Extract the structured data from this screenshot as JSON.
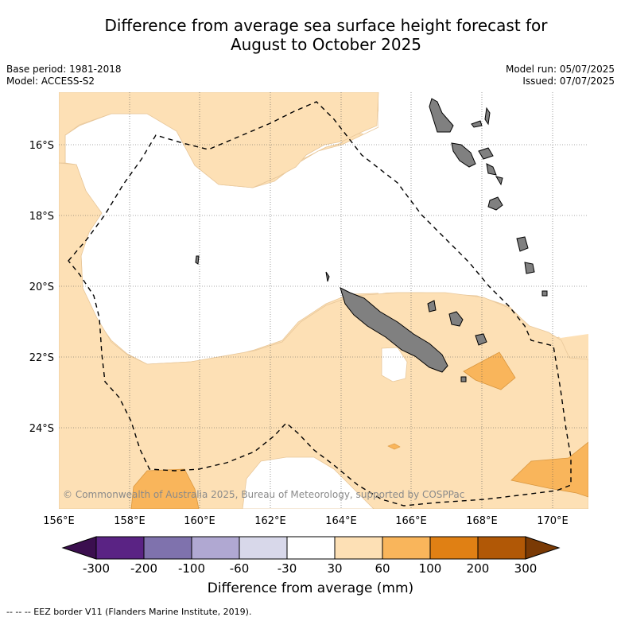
{
  "title_line1": "Difference from average sea surface height forecast for",
  "title_line2": "August to October 2025",
  "meta_left": {
    "base_period": "Base period: 1981-2018",
    "model": "Model: ACCESS-S2"
  },
  "meta_right": {
    "model_run": "Model run: 05/07/2025",
    "issued": "Issued: 07/07/2025"
  },
  "map": {
    "lon_range": [
      156,
      171
    ],
    "lat_range": [
      -26.2,
      -14.4
    ],
    "lat_ticks": [
      "16°S",
      "18°S",
      "20°S",
      "22°S",
      "24°S"
    ],
    "lon_ticks": [
      "156°E",
      "158°E",
      "160°E",
      "162°E",
      "164°E",
      "166°E",
      "168°E",
      "170°E"
    ],
    "copyright": "© Commonwealth of Australia 2025, Bureau of Meteorology, supported by COSPPac",
    "land_color": "#808080",
    "eez_style": "dashed"
  },
  "colorbar": {
    "bounds": [
      "-300",
      "-200",
      "-100",
      "-60",
      "-30",
      "30",
      "60",
      "100",
      "200",
      "300"
    ],
    "colors": [
      "#3b0f4f",
      "#5a2384",
      "#7f72ad",
      "#b0a8d2",
      "#d8d8ea",
      "#ffffff",
      "#fde0b5",
      "#f9b55b",
      "#e08014",
      "#b15806",
      "#7a3a05"
    ],
    "label": "Difference from average (mm)"
  },
  "footnote": "--  --  -- EEZ border V11 (Flanders Marine Institute, 2019)."
}
